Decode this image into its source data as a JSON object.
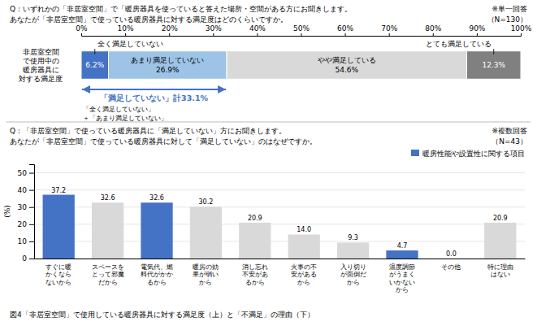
{
  "chart_data": [
    {
      "type": "bar",
      "orientation": "horizontal",
      "stacked": true,
      "title": "Q：いずれかの「非居室空間」で「暖房器具を使っていると答えた場所・空間がある方にお聞きします。",
      "subtitle": "あなたが「非居室空間」で使っている暖房器具に対する満足度はどのくらいですか。",
      "notes": [
        "※単一回答",
        "（N=130）"
      ],
      "ylabel": "非居室空間\nで使用中の\n暖房器具に\n対する満足度",
      "categories": [
        null
      ],
      "series": [
        {
          "name": "全く満足していない",
          "color": "#4472c4",
          "values": [
            6.2
          ],
          "value_labels": [
            "6.2%"
          ]
        },
        {
          "name": "あまり満足していない",
          "color": "#9dc3e6",
          "values": [
            26.9
          ],
          "value_labels": [
            "26.9%"
          ]
        },
        {
          "name": "やや満足している",
          "color": "#d9d9d9",
          "values": [
            54.6
          ],
          "value_labels": [
            "54.6%"
          ]
        },
        {
          "name": "とても満足している",
          "color": "#808080",
          "values": [
            12.3
          ],
          "value_labels": [
            "12.3%"
          ]
        }
      ],
      "data_labels": true,
      "tick_labels": "x",
      "xlim": [
        0,
        100
      ],
      "xticks": [
        {
          "value": 0,
          "label": "0%"
        },
        {
          "value": 10,
          "label": "10%"
        },
        {
          "value": 20,
          "label": "20%"
        },
        {
          "value": 30,
          "label": "30%"
        },
        {
          "value": 40,
          "label": "40%"
        },
        {
          "value": 50,
          "label": "50%"
        },
        {
          "value": 60,
          "label": "60%"
        },
        {
          "value": 70,
          "label": "70%"
        },
        {
          "value": 80,
          "label": "80%"
        },
        {
          "value": 90,
          "label": "90%"
        },
        {
          "value": 100,
          "label": "100%"
        }
      ],
      "annotations": [
        {
          "text": "「満足していない」計33.1%",
          "x": [
            0.0,
            33.1
          ],
          "color": "#4472c4",
          "notes": [
            "「全く満足していない」",
            "＋「あまり満足していない」"
          ]
        }
      ]
    },
    {
      "type": "bar",
      "title": "Q：「非居室空間」で使っている暖房器具に「満足していない」方にお聞きします。",
      "subtitle": "あなたが「非居室空間」で使っている暖房器具に対して「満足していない」のはなぜですか。",
      "notes": [
        "※複数回答",
        "（N=43）"
      ],
      "ylabel": "(%)",
      "categories": [
        "すぐに暖\nかくなら\nないから",
        "スペースを\nとって邪魔\nだから",
        "電気代、燃\n料代がかか\nるから",
        "暖房の効\n果が弱い\nから",
        "消し忘れ\n不安があ\nるから",
        "火事の不\n安がある\nから",
        "入り切り\nが面倒だ\nから",
        "温度調節\nがうまく\nいかない\nから",
        "その他",
        "特に理由\nはない"
      ],
      "series": [
        {
          "name": "暖房性能や設置性に関する項目",
          "color": "#4472c4",
          "colors": [
            "#4472c4",
            "#d9d9d9",
            "#4472c4",
            "#d9d9d9",
            "#d9d9d9",
            "#d9d9d9",
            "#d9d9d9",
            "#4472c4",
            "#d9d9d9",
            "#d9d9d9"
          ],
          "values": [
            37.2,
            32.6,
            32.6,
            30.2,
            20.9,
            14.0,
            9.3,
            4.7,
            0.0,
            20.9
          ],
          "value_labels": [
            "37.2",
            "32.6",
            "32.6",
            "30.2",
            "20.9",
            "14.0",
            "9.3",
            "4.7",
            "0.0",
            "20.9"
          ]
        }
      ],
      "data_labels": true,
      "ylim": [
        0,
        55
      ],
      "yticks": [
        0,
        10,
        20,
        30,
        40,
        50
      ],
      "grid": true,
      "legend": "upper right"
    }
  ],
  "caption": "図4「非居室空間」で使用している暖房器具に対する満足度（上）と「不満足」の理由（下）"
}
